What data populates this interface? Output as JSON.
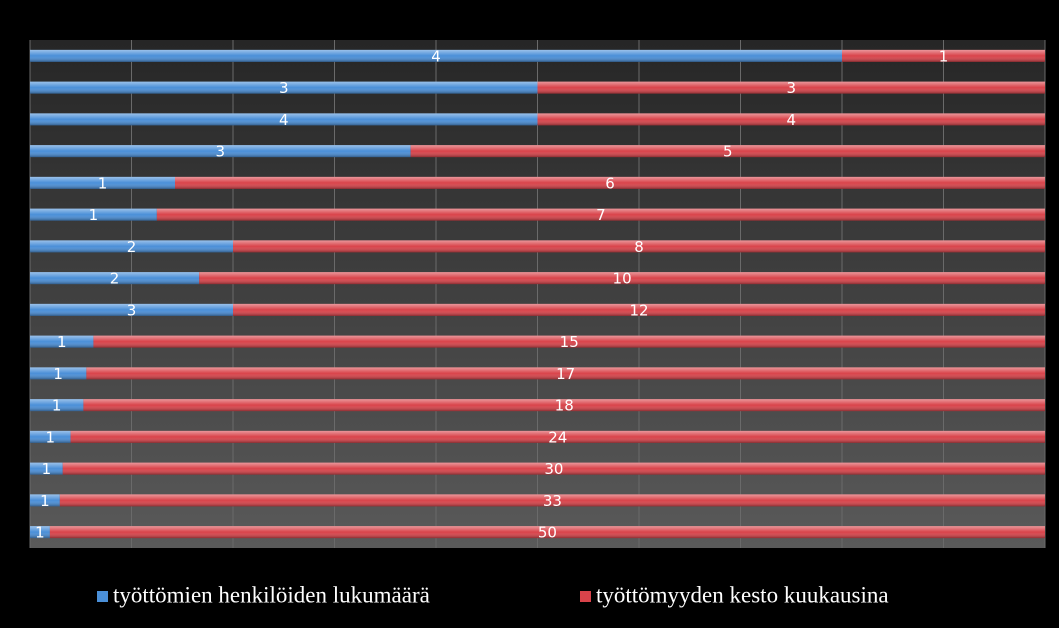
{
  "chart_data": {
    "type": "bar",
    "orientation": "horizontal",
    "stacking": "percent",
    "categories": [
      null,
      null,
      null,
      null,
      null,
      null,
      null,
      null,
      null,
      null,
      null,
      null,
      null,
      null,
      null,
      null
    ],
    "series": [
      {
        "name": "työttömien henkilöiden lukumäärä",
        "color": "#4a8fd8",
        "values": [
          4,
          3,
          4,
          3,
          1,
          1,
          2,
          2,
          3,
          1,
          1,
          1,
          1,
          1,
          1,
          1
        ]
      },
      {
        "name": "työttömyyden kesto kuukausina",
        "color": "#d9434a",
        "values": [
          1,
          3,
          4,
          5,
          6,
          7,
          8,
          10,
          12,
          15,
          17,
          18,
          24,
          30,
          33,
          50
        ]
      }
    ],
    "xlim": [
      0,
      100
    ],
    "xticks": [
      0,
      10,
      20,
      30,
      40,
      50,
      60,
      70,
      80,
      90,
      100
    ],
    "tick_labels": false,
    "grid": true,
    "data_labels": true,
    "legend": "bottom"
  }
}
